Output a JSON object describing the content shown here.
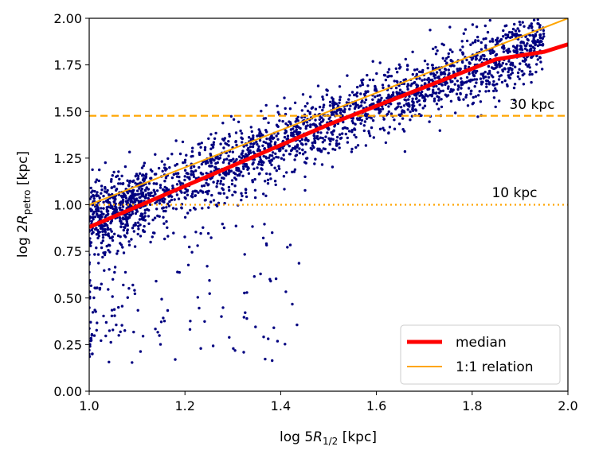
{
  "chart_data": {
    "type": "scatter",
    "title": "",
    "xlabel": {
      "prefix": "log 5",
      "main": "R",
      "sub": "1/2",
      "suffix": " [kpc]"
    },
    "ylabel": {
      "prefix": "log 2",
      "main": "R",
      "sub": "petro",
      "suffix": " [kpc]"
    },
    "xlim": [
      1.0,
      2.0
    ],
    "ylim": [
      0.0,
      2.0
    ],
    "xticks": [
      1.0,
      1.2,
      1.4,
      1.6,
      1.8,
      2.0
    ],
    "xtick_labels": [
      "1.0",
      "1.2",
      "1.4",
      "1.6",
      "1.8",
      "2.0"
    ],
    "yticks": [
      0.0,
      0.25,
      0.5,
      0.75,
      1.0,
      1.25,
      1.5,
      1.75,
      2.0
    ],
    "ytick_labels": [
      "0.00",
      "0.25",
      "0.50",
      "0.75",
      "1.00",
      "1.25",
      "1.50",
      "1.75",
      "2.00"
    ],
    "scatter": {
      "color": "#000080",
      "approx_count": 2500,
      "trend": {
        "slope": 1.0,
        "intercept": -0.1,
        "scatter_sd": 0.09
      },
      "outlier_fraction": 0.07,
      "seed": 12345
    },
    "series": [
      {
        "name": "median",
        "color": "#ff0000",
        "line_width": "thick",
        "x": [
          1.0,
          1.1,
          1.2,
          1.3,
          1.4,
          1.5,
          1.6,
          1.7,
          1.8,
          1.85,
          1.9,
          1.95,
          2.0
        ],
        "y": [
          0.88,
          0.99,
          1.1,
          1.21,
          1.32,
          1.43,
          1.53,
          1.63,
          1.73,
          1.78,
          1.8,
          1.82,
          1.86
        ]
      },
      {
        "name": "1:1 relation",
        "color": "#ffa500",
        "line_width": "thin",
        "x": [
          1.0,
          2.0
        ],
        "y": [
          1.0,
          2.0
        ]
      }
    ],
    "hlines": [
      {
        "y": 1.477,
        "style": "dashed",
        "color": "#ffa500",
        "label": "30 kpc"
      },
      {
        "y": 1.0,
        "style": "dotted",
        "color": "#ffa500",
        "label": "10 kpc"
      }
    ],
    "legend": {
      "location": "lower-right",
      "entries": [
        {
          "label": "median",
          "color": "#ff0000",
          "style": "thick"
        },
        {
          "label": "1:1 relation",
          "color": "#ffa500",
          "style": "thin"
        }
      ]
    }
  }
}
